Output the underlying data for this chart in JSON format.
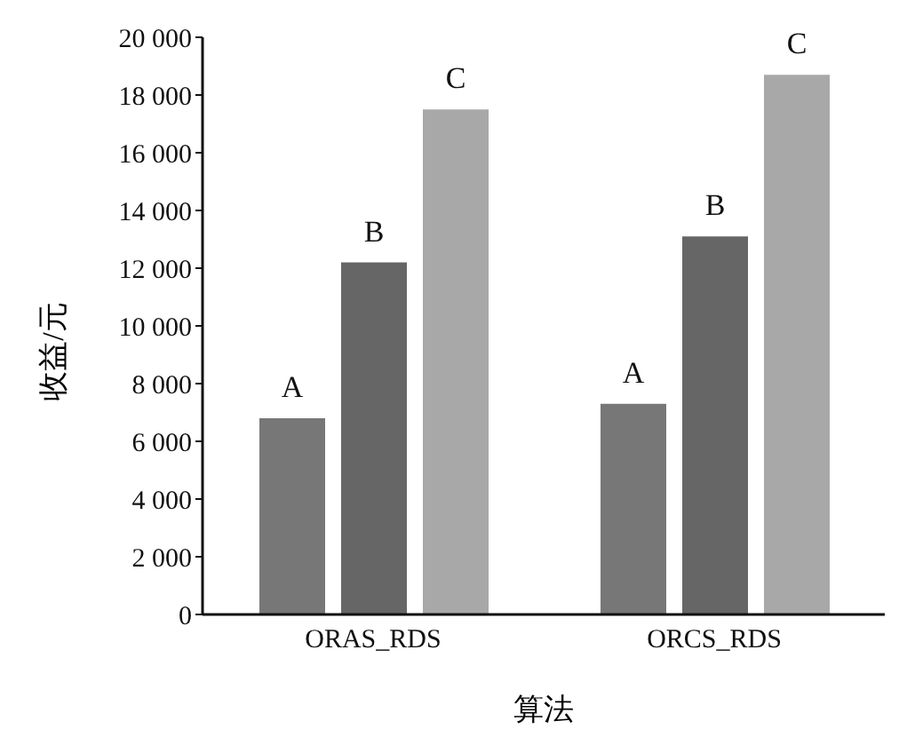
{
  "chart_data": {
    "type": "bar",
    "xlabel": "算法",
    "ylabel": "收益/元",
    "categories": [
      "ORAS_RDS",
      "ORCS_RDS"
    ],
    "series": [
      {
        "name": "A",
        "color": "#777777",
        "values": [
          6800,
          7300
        ]
      },
      {
        "name": "B",
        "color": "#666666",
        "values": [
          12200,
          13100
        ]
      },
      {
        "name": "C",
        "color": "#a8a8a8",
        "values": [
          17500,
          18700
        ]
      }
    ],
    "ylim": [
      0,
      20000
    ],
    "yticks": [
      0,
      {
        "value": 2000,
        "label": "2 000"
      },
      {
        "value": 4000,
        "label": "4 000"
      },
      {
        "value": 6000,
        "label": "6 000"
      },
      {
        "value": 8000,
        "label": "8 000"
      },
      {
        "value": 10000,
        "label": "10 000"
      },
      {
        "value": 12000,
        "label": "12 000"
      },
      {
        "value": 14000,
        "label": "14 000"
      },
      {
        "value": 16000,
        "label": "16 000"
      },
      {
        "value": 18000,
        "label": "18 000"
      },
      {
        "value": 20000,
        "label": "20 000"
      }
    ],
    "grid": false,
    "legend": false
  }
}
